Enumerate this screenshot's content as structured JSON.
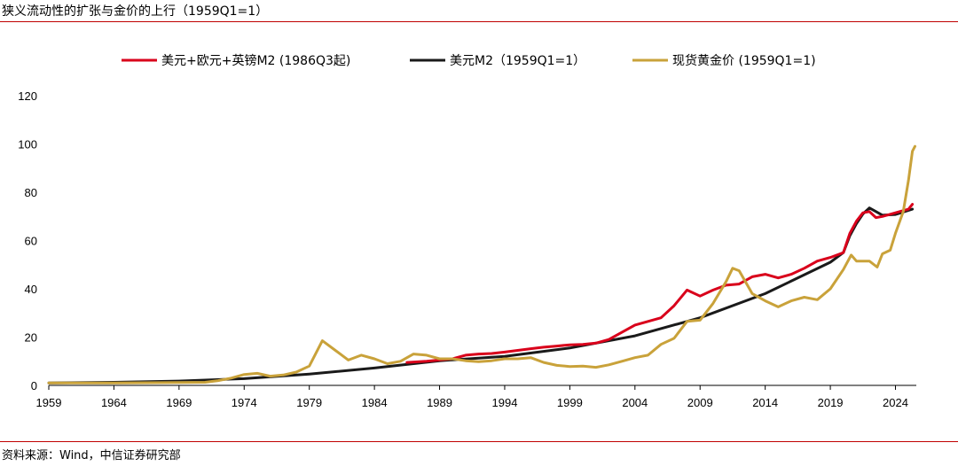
{
  "title": "狭义流动性的扩张与金价的上行（1959Q1=1）",
  "source": "资料来源：Wind，中信证券研究部",
  "colors": {
    "rule": "#c00000"
  },
  "chart_data": {
    "type": "line",
    "title": "狭义流动性的扩张与金价的上行（1959Q1=1）",
    "xlabel": "",
    "ylabel": "",
    "xlim": [
      1959,
      2025.6
    ],
    "ylim": [
      0,
      120
    ],
    "x_ticks": [
      1959,
      1964,
      1969,
      1974,
      1979,
      1984,
      1989,
      1994,
      1999,
      2004,
      2009,
      2014,
      2019,
      2024
    ],
    "y_ticks": [
      0,
      20,
      40,
      60,
      80,
      100,
      120
    ],
    "grid": false,
    "legend": "top",
    "series": [
      {
        "name": "美元+欧元+英镑M2 (1986Q3起)",
        "color": "#d9001b",
        "points": [
          [
            1986.5,
            9.5
          ],
          [
            1988,
            10
          ],
          [
            1989,
            10.5
          ],
          [
            1990,
            11
          ],
          [
            1991,
            12.5
          ],
          [
            1992,
            13
          ],
          [
            1993,
            13.2
          ],
          [
            1994,
            13.8
          ],
          [
            1995,
            14.5
          ],
          [
            1996,
            15.2
          ],
          [
            1997,
            15.8
          ],
          [
            1998,
            16.3
          ],
          [
            1999,
            16.8
          ],
          [
            2000,
            17
          ],
          [
            2001,
            17.5
          ],
          [
            2002,
            19
          ],
          [
            2003,
            22
          ],
          [
            2004,
            25
          ],
          [
            2005,
            26.5
          ],
          [
            2006,
            28
          ],
          [
            2007,
            33
          ],
          [
            2008,
            39.5
          ],
          [
            2009,
            37
          ],
          [
            2010,
            39.5
          ],
          [
            2011,
            41.5
          ],
          [
            2012,
            42
          ],
          [
            2013,
            45
          ],
          [
            2014,
            46
          ],
          [
            2015,
            44.5
          ],
          [
            2016,
            46
          ],
          [
            2017,
            48.5
          ],
          [
            2018,
            51.5
          ],
          [
            2019,
            53
          ],
          [
            2020,
            55
          ],
          [
            2020.5,
            63
          ],
          [
            2021,
            68
          ],
          [
            2021.5,
            71.5
          ],
          [
            2022,
            72
          ],
          [
            2022.5,
            69.5
          ],
          [
            2023,
            70
          ],
          [
            2024,
            71.5
          ],
          [
            2025,
            73
          ],
          [
            2025.3,
            75
          ]
        ]
      },
      {
        "name": "美元M2（1959Q1=1）",
        "color": "#1a1a1a",
        "points": [
          [
            1959,
            1
          ],
          [
            1964,
            1.3
          ],
          [
            1969,
            1.8
          ],
          [
            1974,
            2.8
          ],
          [
            1979,
            4.7
          ],
          [
            1984,
            7.2
          ],
          [
            1989,
            10.2
          ],
          [
            1994,
            12
          ],
          [
            1999,
            15.5
          ],
          [
            2004,
            20.5
          ],
          [
            2009,
            28
          ],
          [
            2014,
            38
          ],
          [
            2019,
            51
          ],
          [
            2020,
            55
          ],
          [
            2020.5,
            62
          ],
          [
            2021,
            67
          ],
          [
            2021.5,
            71
          ],
          [
            2022,
            73.5
          ],
          [
            2022.5,
            72
          ],
          [
            2023,
            70.5
          ],
          [
            2024,
            70.8
          ],
          [
            2025.3,
            73
          ]
        ]
      },
      {
        "name": "现货黄金价 (1959Q1=1)",
        "color": "#c9a23a",
        "points": [
          [
            1959,
            1
          ],
          [
            1964,
            1
          ],
          [
            1969,
            1.2
          ],
          [
            1971,
            1.3
          ],
          [
            1972,
            2
          ],
          [
            1973,
            3
          ],
          [
            1974,
            4.5
          ],
          [
            1975,
            5
          ],
          [
            1976,
            3.8
          ],
          [
            1977,
            4.3
          ],
          [
            1978,
            5.5
          ],
          [
            1979,
            8
          ],
          [
            1980,
            18.5
          ],
          [
            1981,
            14.5
          ],
          [
            1982,
            10.5
          ],
          [
            1983,
            12.5
          ],
          [
            1984,
            11
          ],
          [
            1985,
            9
          ],
          [
            1986,
            10
          ],
          [
            1987,
            13
          ],
          [
            1988,
            12.5
          ],
          [
            1989,
            11
          ],
          [
            1990,
            11
          ],
          [
            1991,
            10.2
          ],
          [
            1992,
            9.8
          ],
          [
            1993,
            10.2
          ],
          [
            1994,
            11
          ],
          [
            1995,
            11
          ],
          [
            1996,
            11.5
          ],
          [
            1997,
            9.5
          ],
          [
            1998,
            8.3
          ],
          [
            1999,
            7.8
          ],
          [
            2000,
            8
          ],
          [
            2001,
            7.5
          ],
          [
            2002,
            8.5
          ],
          [
            2003,
            10
          ],
          [
            2004,
            11.5
          ],
          [
            2005,
            12.5
          ],
          [
            2006,
            17
          ],
          [
            2007,
            19.5
          ],
          [
            2008,
            26.5
          ],
          [
            2009,
            27
          ],
          [
            2010,
            34
          ],
          [
            2011,
            43
          ],
          [
            2011.5,
            48.5
          ],
          [
            2012,
            47.5
          ],
          [
            2013,
            38
          ],
          [
            2014,
            35
          ],
          [
            2015,
            32.5
          ],
          [
            2016,
            35
          ],
          [
            2017,
            36.5
          ],
          [
            2018,
            35.5
          ],
          [
            2019,
            40
          ],
          [
            2020,
            48
          ],
          [
            2020.6,
            54
          ],
          [
            2021,
            51.5
          ],
          [
            2022,
            51.5
          ],
          [
            2022.6,
            49
          ],
          [
            2023,
            54.5
          ],
          [
            2023.6,
            56
          ],
          [
            2024,
            63
          ],
          [
            2024.6,
            72
          ],
          [
            2025,
            85
          ],
          [
            2025.3,
            97
          ],
          [
            2025.5,
            99
          ]
        ]
      }
    ]
  }
}
